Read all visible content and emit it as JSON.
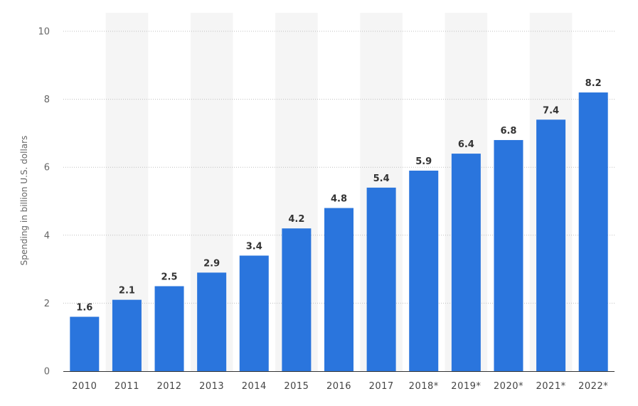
{
  "chart_data": {
    "type": "bar",
    "categories": [
      "2010",
      "2011",
      "2012",
      "2013",
      "2014",
      "2015",
      "2016",
      "2017",
      "2018*",
      "2019*",
      "2020*",
      "2021*",
      "2022*"
    ],
    "values": [
      1.6,
      2.1,
      2.5,
      2.9,
      3.4,
      4.2,
      4.8,
      5.4,
      5.9,
      6.4,
      6.8,
      7.4,
      8.2
    ],
    "value_labels": [
      "1.6",
      "2.1",
      "2.5",
      "2.9",
      "3.4",
      "4.2",
      "4.8",
      "5.4",
      "5.9",
      "6.4",
      "6.8",
      "7.4",
      "8.2"
    ],
    "title": "",
    "xlabel": "",
    "ylabel": "Spending in billion U.S. dollars",
    "ylim": [
      0,
      10
    ],
    "yticks": [
      "0",
      "2",
      "4",
      "6",
      "8",
      "10"
    ],
    "ytick_values": [
      0,
      2,
      4,
      6,
      8,
      10
    ],
    "grid": true,
    "grid_style": "dotted",
    "alternating_column_shading": true,
    "colors": {
      "bar": "#2a75dd",
      "grid": "#bfbfbf",
      "band": "#f5f5f5",
      "axis": "#333333"
    }
  }
}
